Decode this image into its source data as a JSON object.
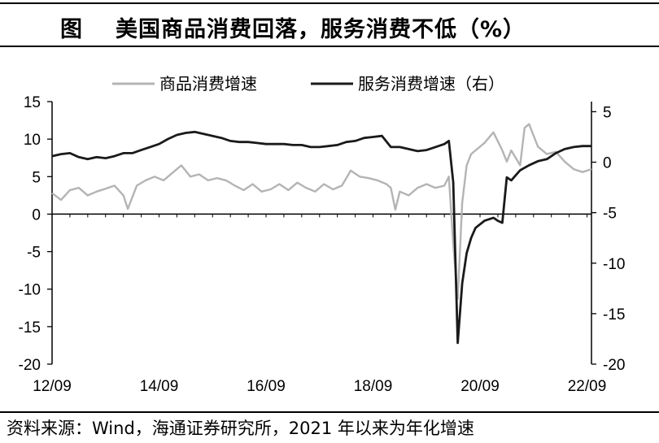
{
  "figure": {
    "label": "图",
    "title": "美国商品消费回落，服务消费不低（%）",
    "source": "资料来源：Wind，海通证券研究所，2021 年以来为年化增速"
  },
  "chart_data": {
    "type": "line",
    "title": "美国商品消费回落，服务消费不低（%）",
    "x_ticks": [
      "12/09",
      "14/09",
      "16/09",
      "18/09",
      "20/09",
      "22/09"
    ],
    "x_range": [
      "2012-09",
      "2022-10"
    ],
    "y_left": {
      "lim": [
        -20,
        15
      ],
      "ticks": [
        15,
        10,
        5,
        0,
        -5,
        -10,
        -15,
        -20
      ]
    },
    "y_right": {
      "lim": [
        -20,
        6
      ],
      "ticks": [
        5,
        0,
        -5,
        -10,
        -15,
        -20
      ]
    },
    "grid": false,
    "legend_position": "top",
    "series": [
      {
        "name": "商品消费增速",
        "axis": "left",
        "color": "#b4b4b4",
        "points": [
          [
            "2012-09",
            2.8
          ],
          [
            "2012-11",
            1.9
          ],
          [
            "2013-01",
            3.2
          ],
          [
            "2013-03",
            3.5
          ],
          [
            "2013-05",
            2.5
          ],
          [
            "2013-07",
            3.0
          ],
          [
            "2013-09",
            3.4
          ],
          [
            "2013-11",
            3.8
          ],
          [
            "2014-01",
            2.5
          ],
          [
            "2014-02",
            0.7
          ],
          [
            "2014-04",
            3.8
          ],
          [
            "2014-06",
            4.5
          ],
          [
            "2014-08",
            5.0
          ],
          [
            "2014-10",
            4.5
          ],
          [
            "2014-12",
            5.5
          ],
          [
            "2015-02",
            6.5
          ],
          [
            "2015-04",
            5.0
          ],
          [
            "2015-06",
            5.3
          ],
          [
            "2015-08",
            4.5
          ],
          [
            "2015-10",
            4.8
          ],
          [
            "2015-12",
            4.5
          ],
          [
            "2016-02",
            3.8
          ],
          [
            "2016-04",
            3.2
          ],
          [
            "2016-06",
            4.0
          ],
          [
            "2016-08",
            3.0
          ],
          [
            "2016-10",
            3.3
          ],
          [
            "2016-12",
            4.0
          ],
          [
            "2017-02",
            3.2
          ],
          [
            "2017-04",
            4.2
          ],
          [
            "2017-06",
            3.5
          ],
          [
            "2017-08",
            3.0
          ],
          [
            "2017-10",
            4.0
          ],
          [
            "2017-12",
            3.3
          ],
          [
            "2018-02",
            3.8
          ],
          [
            "2018-04",
            5.8
          ],
          [
            "2018-06",
            5.0
          ],
          [
            "2018-08",
            4.8
          ],
          [
            "2018-10",
            4.5
          ],
          [
            "2018-12",
            4.0
          ],
          [
            "2019-01",
            3.5
          ],
          [
            "2019-02",
            0.6
          ],
          [
            "2019-03",
            3.0
          ],
          [
            "2019-05",
            2.5
          ],
          [
            "2019-07",
            3.5
          ],
          [
            "2019-09",
            4.0
          ],
          [
            "2019-11",
            3.5
          ],
          [
            "2020-01",
            3.8
          ],
          [
            "2020-02",
            5.0
          ],
          [
            "2020-03",
            -4.0
          ],
          [
            "2020-04",
            -11.3
          ],
          [
            "2020-05",
            1.5
          ],
          [
            "2020-06",
            6.5
          ],
          [
            "2020-07",
            8.0
          ],
          [
            "2020-08",
            8.5
          ],
          [
            "2020-10",
            9.5
          ],
          [
            "2020-12",
            10.9
          ],
          [
            "2021-02",
            8.5
          ],
          [
            "2021-03",
            7.0
          ],
          [
            "2021-04",
            8.5
          ],
          [
            "2021-06",
            6.5
          ],
          [
            "2021-07",
            11.5
          ],
          [
            "2021-08",
            12.0
          ],
          [
            "2021-10",
            9.0
          ],
          [
            "2021-12",
            8.0
          ],
          [
            "2022-02",
            8.3
          ],
          [
            "2022-04",
            7.0
          ],
          [
            "2022-06",
            6.0
          ],
          [
            "2022-08",
            5.6
          ],
          [
            "2022-10",
            6.0
          ]
        ]
      },
      {
        "name": "服务消费增速（右）",
        "axis": "right",
        "color": "#1a1a1a",
        "points": [
          [
            "2012-09",
            0.6
          ],
          [
            "2012-11",
            0.8
          ],
          [
            "2013-01",
            0.9
          ],
          [
            "2013-03",
            0.5
          ],
          [
            "2013-05",
            0.3
          ],
          [
            "2013-07",
            0.5
          ],
          [
            "2013-09",
            0.4
          ],
          [
            "2013-11",
            0.6
          ],
          [
            "2014-01",
            0.9
          ],
          [
            "2014-03",
            0.9
          ],
          [
            "2014-05",
            1.2
          ],
          [
            "2014-07",
            1.5
          ],
          [
            "2014-09",
            1.8
          ],
          [
            "2014-11",
            2.3
          ],
          [
            "2015-01",
            2.7
          ],
          [
            "2015-03",
            2.9
          ],
          [
            "2015-05",
            3.0
          ],
          [
            "2015-07",
            2.8
          ],
          [
            "2015-09",
            2.6
          ],
          [
            "2015-11",
            2.4
          ],
          [
            "2016-01",
            2.1
          ],
          [
            "2016-03",
            2.0
          ],
          [
            "2016-05",
            2.0
          ],
          [
            "2016-07",
            1.9
          ],
          [
            "2016-09",
            1.8
          ],
          [
            "2016-11",
            1.8
          ],
          [
            "2017-01",
            1.8
          ],
          [
            "2017-03",
            1.7
          ],
          [
            "2017-05",
            1.7
          ],
          [
            "2017-07",
            1.5
          ],
          [
            "2017-09",
            1.5
          ],
          [
            "2017-11",
            1.6
          ],
          [
            "2018-01",
            1.7
          ],
          [
            "2018-03",
            2.0
          ],
          [
            "2018-05",
            2.1
          ],
          [
            "2018-07",
            2.4
          ],
          [
            "2018-09",
            2.5
          ],
          [
            "2018-11",
            2.6
          ],
          [
            "2019-01",
            1.5
          ],
          [
            "2019-03",
            1.5
          ],
          [
            "2019-05",
            1.3
          ],
          [
            "2019-07",
            1.1
          ],
          [
            "2019-09",
            1.2
          ],
          [
            "2019-11",
            1.5
          ],
          [
            "2020-01",
            1.8
          ],
          [
            "2020-02",
            2.1
          ],
          [
            "2020-03",
            -2.0
          ],
          [
            "2020-04",
            -17.9
          ],
          [
            "2020-05",
            -12.0
          ],
          [
            "2020-06",
            -9.0
          ],
          [
            "2020-07",
            -7.5
          ],
          [
            "2020-08",
            -6.5
          ],
          [
            "2020-10",
            -5.8
          ],
          [
            "2020-12",
            -5.5
          ],
          [
            "2021-01",
            -5.8
          ],
          [
            "2021-02",
            -6.0
          ],
          [
            "2021-03",
            -1.5
          ],
          [
            "2021-04",
            -1.8
          ],
          [
            "2021-06",
            -0.8
          ],
          [
            "2021-08",
            -0.3
          ],
          [
            "2021-10",
            0.1
          ],
          [
            "2021-12",
            0.3
          ],
          [
            "2022-02",
            0.9
          ],
          [
            "2022-04",
            1.3
          ],
          [
            "2022-06",
            1.5
          ],
          [
            "2022-08",
            1.6
          ],
          [
            "2022-10",
            1.6
          ]
        ]
      }
    ]
  }
}
